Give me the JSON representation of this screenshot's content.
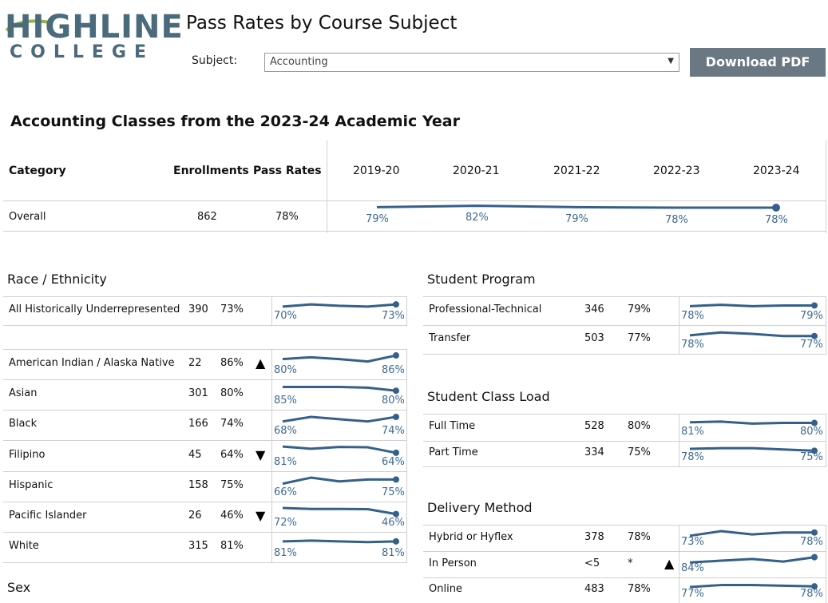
{
  "brand": {
    "line1": "HIGHLINE",
    "line2": "COLLEGE",
    "color": "#4b6a7c"
  },
  "header": {
    "title": "Pass Rates by Course Subject",
    "subject_label": "Subject:",
    "subject_value": "Accounting",
    "download_label": "Download PDF"
  },
  "summary": {
    "heading": "Accounting Classes from the 2023-24 Academic Year",
    "columns": {
      "category": "Category",
      "enrollments": "Enrollments",
      "pass_rates": "Pass Rates"
    },
    "years": [
      "2019-20",
      "2020-21",
      "2021-22",
      "2022-23",
      "2023-24"
    ],
    "overall": {
      "name": "Overall",
      "enrollments": "862",
      "pass_rate": "78%",
      "trend": [
        79,
        82,
        79,
        78,
        78
      ],
      "trend_labels": [
        "79%",
        "82%",
        "79%",
        "78%",
        "78%"
      ]
    }
  },
  "groups": {
    "race": {
      "title": "Race / Ethnicity",
      "underrep": {
        "name": "All Historically Underrepresented",
        "enrollments": "390",
        "pass_rate": "73%",
        "trend": [
          70,
          73,
          71,
          70,
          73
        ],
        "first": "70%",
        "last": "73%",
        "flag": ""
      },
      "rows": [
        {
          "name": "American Indian / Alaska Native",
          "enrollments": "22",
          "pass_rate": "86%",
          "trend": [
            80,
            83,
            80,
            76,
            86
          ],
          "first": "80%",
          "last": "86%",
          "flag": "▲"
        },
        {
          "name": "Asian",
          "enrollments": "301",
          "pass_rate": "80%",
          "trend": [
            85,
            85,
            85,
            84,
            80
          ],
          "first": "85%",
          "last": "80%",
          "flag": ""
        },
        {
          "name": "Black",
          "enrollments": "166",
          "pass_rate": "74%",
          "trend": [
            68,
            74,
            71,
            68,
            74
          ],
          "first": "68%",
          "last": "74%",
          "flag": ""
        },
        {
          "name": "Filipino",
          "enrollments": "45",
          "pass_rate": "64%",
          "trend": [
            81,
            75,
            80,
            79,
            64
          ],
          "first": "81%",
          "last": "64%",
          "flag": "▼"
        },
        {
          "name": "Hispanic",
          "enrollments": "158",
          "pass_rate": "75%",
          "trend": [
            66,
            79,
            71,
            75,
            75
          ],
          "first": "66%",
          "last": "75%",
          "flag": ""
        },
        {
          "name": "Pacific Islander",
          "enrollments": "26",
          "pass_rate": "46%",
          "trend": [
            72,
            68,
            68,
            67,
            46
          ],
          "first": "72%",
          "last": "46%",
          "flag": "▼"
        },
        {
          "name": "White",
          "enrollments": "315",
          "pass_rate": "81%",
          "trend": [
            81,
            82,
            81,
            80,
            81
          ],
          "first": "81%",
          "last": "81%",
          "flag": ""
        }
      ]
    },
    "sex": {
      "title": "Sex"
    },
    "program": {
      "title": "Student Program",
      "rows": [
        {
          "name": "Professional-Technical",
          "enrollments": "346",
          "pass_rate": "79%",
          "trend": [
            78,
            80,
            78,
            79,
            79
          ],
          "first": "78%",
          "last": "79%",
          "flag": ""
        },
        {
          "name": "Transfer",
          "enrollments": "503",
          "pass_rate": "77%",
          "trend": [
            78,
            82,
            80,
            77,
            77
          ],
          "first": "78%",
          "last": "77%",
          "flag": ""
        }
      ]
    },
    "load": {
      "title": "Student Class Load",
      "rows": [
        {
          "name": "Full Time",
          "enrollments": "528",
          "pass_rate": "80%",
          "trend": [
            81,
            82,
            79,
            80,
            80
          ],
          "first": "81%",
          "last": "80%",
          "flag": ""
        },
        {
          "name": "Part Time",
          "enrollments": "334",
          "pass_rate": "75%",
          "trend": [
            78,
            79,
            79,
            77,
            75
          ],
          "first": "78%",
          "last": "75%",
          "flag": ""
        }
      ]
    },
    "delivery": {
      "title": "Delivery Method",
      "rows": [
        {
          "name": "Hybrid or Hyflex",
          "enrollments": "378",
          "pass_rate": "78%",
          "trend": [
            73,
            80,
            75,
            78,
            78
          ],
          "first": "73%",
          "last": "78%",
          "flag": ""
        },
        {
          "name": "In Person",
          "enrollments": "<5",
          "pass_rate": "*",
          "trend": [
            84,
            88,
            92,
            86,
            96
          ],
          "first": "84%",
          "last": "",
          "flag": "▲"
        },
        {
          "name": "Online",
          "enrollments": "483",
          "pass_rate": "78%",
          "trend": [
            77,
            80,
            80,
            79,
            78
          ],
          "first": "77%",
          "last": "78%",
          "flag": ""
        }
      ]
    }
  }
}
